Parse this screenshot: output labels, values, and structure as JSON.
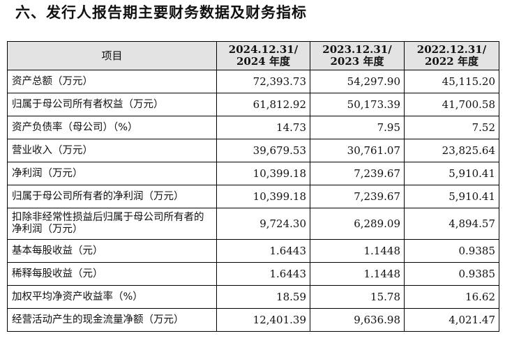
{
  "heading": "六、发行人报告期主要财务数据及财务指标",
  "table": {
    "header": {
      "item": "项目",
      "periods": [
        {
          "line1": "2024.12.31/",
          "line2": "2024 年度"
        },
        {
          "line1": "2023.12.31/",
          "line2": "2023 年度"
        },
        {
          "line1": "2022.12.31/",
          "line2": "2022 年度"
        }
      ]
    },
    "rows": [
      {
        "label": "资产总额（万元）",
        "values": [
          "72,393.73",
          "54,297.90",
          "45,115.20"
        ]
      },
      {
        "label": "归属于母公司所有者权益（万元）",
        "values": [
          "61,812.92",
          "50,173.39",
          "41,700.58"
        ]
      },
      {
        "label": "资产负债率（母公司）（%）",
        "values": [
          "14.73",
          "7.95",
          "7.52"
        ]
      },
      {
        "label": "营业收入（万元）",
        "values": [
          "39,679.53",
          "30,761.07",
          "23,825.64"
        ]
      },
      {
        "label": "净利润（万元）",
        "values": [
          "10,399.18",
          "7,239.67",
          "5,910.41"
        ]
      },
      {
        "label": "归属于母公司所有者的净利润（万元）",
        "values": [
          "10,399.18",
          "7,239.67",
          "5,910.41"
        ]
      },
      {
        "label": "扣除非经常性损益后归属于母公司所有者的净利润（万元）",
        "values": [
          "9,724.30",
          "6,289.09",
          "4,894.57"
        ]
      },
      {
        "label": "基本每股收益（元）",
        "values": [
          "1.6443",
          "1.1448",
          "0.9385"
        ]
      },
      {
        "label": "稀释每股收益（元）",
        "values": [
          "1.6443",
          "1.1448",
          "0.9385"
        ]
      },
      {
        "label": "加权平均净资产收益率（%）",
        "values": [
          "18.59",
          "15.78",
          "16.62"
        ]
      },
      {
        "label": "经营活动产生的现金流量净额（万元）",
        "values": [
          "12,401.39",
          "9,636.98",
          "4,021.47"
        ]
      }
    ]
  }
}
